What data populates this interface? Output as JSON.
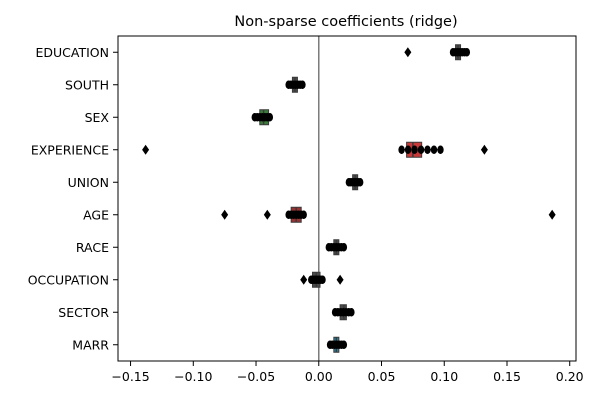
{
  "chart_data": {
    "type": "boxplot",
    "title": "Non-sparse coefficients (ridge)",
    "xlabel": "",
    "ylabel": "",
    "xlim": [
      -0.16,
      0.205
    ],
    "xticks": [
      -0.15,
      -0.1,
      -0.05,
      0.0,
      0.05,
      0.1,
      0.15,
      0.2
    ],
    "xtick_labels": [
      "−0.15",
      "−0.10",
      "−0.05",
      "0.00",
      "0.05",
      "0.10",
      "0.15",
      "0.20"
    ],
    "reference_line_x": 0.0,
    "grid": false,
    "orientation": "horizontal",
    "categories": [
      "EDUCATION",
      "SOUTH",
      "SEX",
      "EXPERIENCE",
      "UNION",
      "AGE",
      "RACE",
      "OCCUPATION",
      "SECTOR",
      "MARR"
    ],
    "boxes": [
      {
        "name": "EDUCATION",
        "q1": 0.109,
        "median": 0.111,
        "q3": 0.113,
        "whisker_low": 0.107,
        "whisker_high": 0.118,
        "outliers": [
          0.071
        ],
        "color": "#4a4a4a"
      },
      {
        "name": "SOUTH",
        "q1": -0.021,
        "median": -0.019,
        "q3": -0.017,
        "whisker_low": -0.024,
        "whisker_high": -0.013,
        "outliers": [],
        "color": "#4a4a4a"
      },
      {
        "name": "SEX",
        "q1": -0.047,
        "median": -0.044,
        "q3": -0.04,
        "whisker_low": -0.051,
        "whisker_high": -0.039,
        "outliers": [],
        "color": "#3a7d3a"
      },
      {
        "name": "EXPERIENCE",
        "q1": 0.07,
        "median": 0.075,
        "q3": 0.082,
        "whisker_low": 0.066,
        "whisker_high": 0.097,
        "outliers": [
          -0.138,
          0.132
        ],
        "color": "#c83a3a"
      },
      {
        "name": "UNION",
        "q1": 0.027,
        "median": 0.029,
        "q3": 0.031,
        "whisker_low": 0.024,
        "whisker_high": 0.033,
        "outliers": [],
        "color": "#4a4a4a"
      },
      {
        "name": "AGE",
        "q1": -0.022,
        "median": -0.018,
        "q3": -0.014,
        "whisker_low": -0.024,
        "whisker_high": -0.012,
        "outliers": [
          -0.075,
          -0.041,
          0.186
        ],
        "color": "#9a3030"
      },
      {
        "name": "RACE",
        "q1": 0.012,
        "median": 0.014,
        "q3": 0.016,
        "whisker_low": 0.008,
        "whisker_high": 0.02,
        "outliers": [],
        "color": "#4a4a4a"
      },
      {
        "name": "OCCUPATION",
        "q1": -0.005,
        "median": -0.002,
        "q3": 0.001,
        "whisker_low": -0.006,
        "whisker_high": 0.003,
        "outliers": [
          -0.012,
          0.017
        ],
        "color": "#4a4a4a"
      },
      {
        "name": "SECTOR",
        "q1": 0.017,
        "median": 0.02,
        "q3": 0.022,
        "whisker_low": 0.013,
        "whisker_high": 0.026,
        "outliers": [],
        "color": "#4a4a4a"
      },
      {
        "name": "MARR",
        "q1": 0.012,
        "median": 0.014,
        "q3": 0.016,
        "whisker_low": 0.009,
        "whisker_high": 0.02,
        "outliers": [],
        "color": "#2f7f9a"
      }
    ]
  }
}
